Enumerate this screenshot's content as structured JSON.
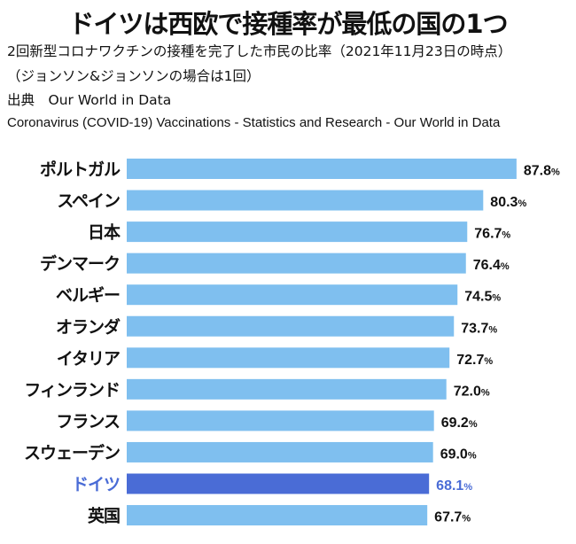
{
  "chart_data": {
    "type": "bar",
    "orientation": "horizontal",
    "title": "ドイツは西欧で接種率が最低の国の1つ",
    "subtitle": [
      "2回新型コロナワクチンの接種を完了した市民の比率（2021年11月23日の時点）",
      "（ジョンソン&ジョンソンの場合は1回）"
    ],
    "source_label": "出典　Our World in Data",
    "source_detail": "Coronavirus (COVID-19) Vaccinations - Statistics and Research - Our World in Data",
    "categories": [
      "ポルトガル",
      "スペイン",
      "日本",
      "デンマーク",
      "ベルギー",
      "オランダ",
      "イタリア",
      "フィンランド",
      "フランス",
      "スウェーデン",
      "ドイツ",
      "英国"
    ],
    "values": [
      87.8,
      80.3,
      76.7,
      76.4,
      74.5,
      73.7,
      72.7,
      72.0,
      69.2,
      69.0,
      68.1,
      67.7
    ],
    "value_labels": [
      "87.8",
      "80.3",
      "76.7",
      "76.4",
      "74.5",
      "73.7",
      "72.7",
      "72.0",
      "69.2",
      "69.0",
      "68.1",
      "67.7"
    ],
    "unit": "%",
    "highlight": "ドイツ",
    "xlim": [
      0,
      100
    ],
    "grid": false,
    "colors": {
      "bar": "#7fbfef",
      "highlight": "#4a6cd6",
      "text": "#111111"
    }
  }
}
